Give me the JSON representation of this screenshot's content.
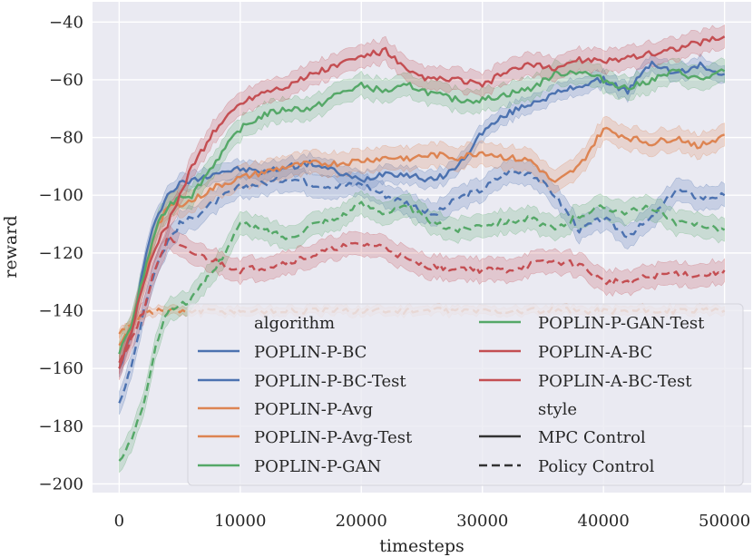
{
  "chart_data": {
    "type": "line",
    "title": "",
    "xlabel": "timesteps",
    "ylabel": "reward",
    "xlim": [
      -2200,
      52200
    ],
    "ylim": [
      -203,
      -33
    ],
    "xticks": [
      0,
      10000,
      20000,
      30000,
      40000,
      50000
    ],
    "yticks": [
      -200,
      -180,
      -160,
      -140,
      -120,
      -100,
      -80,
      -60,
      -40
    ],
    "xtick_labels": [
      "0",
      "10000",
      "20000",
      "30000",
      "40000",
      "50000"
    ],
    "ytick_labels": [
      "−200",
      "−180",
      "−160",
      "−140",
      "−120",
      "−100",
      "−80",
      "−60",
      "−40"
    ],
    "grid": true,
    "background": "#eaeaf2",
    "legend": {
      "placement": "lower-right",
      "algorithm_title": "algorithm",
      "style_title": "style",
      "styles": [
        {
          "name": "MPC Control",
          "dash": "solid"
        },
        {
          "name": "Policy Control",
          "dash": "dashed"
        }
      ]
    },
    "series": [
      {
        "name": "POPLIN-P-BC",
        "color": "#4c72b0",
        "dash": "solid",
        "x": [
          0,
          1000,
          2000,
          3000,
          4000,
          5000,
          6000,
          8000,
          10000,
          12000,
          14000,
          16000,
          18000,
          20000,
          22000,
          24000,
          26000,
          28000,
          30000,
          32000,
          34000,
          36000,
          38000,
          40000,
          42000,
          44000,
          46000,
          48000,
          50000
        ],
        "y": [
          -160,
          -148,
          -125,
          -108,
          -100,
          -96,
          -95,
          -92,
          -91,
          -92,
          -90,
          -89,
          -92,
          -95,
          -92,
          -93,
          -95,
          -90,
          -78,
          -72,
          -68,
          -65,
          -62,
          -60,
          -64,
          -54,
          -58,
          -55,
          -58
        ],
        "band": 3
      },
      {
        "name": "POPLIN-P-BC-Test",
        "color": "#4c72b0",
        "dash": "dashed",
        "x": [
          0,
          1000,
          2000,
          3000,
          4000,
          5000,
          6000,
          8000,
          10000,
          12000,
          14000,
          16000,
          18000,
          20000,
          22000,
          24000,
          26000,
          28000,
          30000,
          32000,
          34000,
          36000,
          38000,
          40000,
          42000,
          44000,
          46000,
          48000,
          50000
        ],
        "y": [
          -172,
          -160,
          -140,
          -125,
          -116,
          -110,
          -108,
          -102,
          -97,
          -96,
          -94,
          -96,
          -97,
          -96,
          -100,
          -103,
          -107,
          -101,
          -98,
          -92,
          -92,
          -100,
          -112,
          -108,
          -114,
          -108,
          -98,
          -101,
          -100
        ],
        "band": 4
      },
      {
        "name": "POPLIN-P-Avg",
        "color": "#dd8452",
        "dash": "solid",
        "x": [
          0,
          1000,
          2000,
          3000,
          4000,
          5000,
          6000,
          8000,
          10000,
          12000,
          14000,
          16000,
          18000,
          20000,
          22000,
          24000,
          26000,
          28000,
          30000,
          32000,
          34000,
          36000,
          38000,
          40000,
          42000,
          44000,
          46000,
          48000,
          50000
        ],
        "y": [
          -152,
          -146,
          -130,
          -112,
          -104,
          -103,
          -102,
          -97,
          -94,
          -92,
          -90,
          -89,
          -89,
          -88,
          -87,
          -87,
          -86,
          -87,
          -85,
          -87,
          -88,
          -96,
          -90,
          -77,
          -80,
          -82,
          -80,
          -83,
          -79
        ],
        "band": 4
      },
      {
        "name": "POPLIN-P-Avg-Test",
        "color": "#dd8452",
        "dash": "dashed",
        "x": [
          0,
          1000,
          2000,
          3000,
          4000,
          5000,
          6000,
          8000,
          10000,
          12000,
          14000,
          16000,
          18000,
          20000,
          22000,
          24000,
          26000,
          28000,
          30000,
          32000,
          34000,
          36000,
          38000,
          40000,
          42000,
          44000,
          46000,
          48000,
          50000
        ],
        "y": [
          -148,
          -144,
          -141,
          -140,
          -140,
          -140,
          -140,
          -140,
          -140,
          -140,
          -140,
          -140,
          -140,
          -140,
          -140,
          -140,
          -140,
          -140,
          -140,
          -140,
          -140,
          -140,
          -140,
          -140,
          -140,
          -140,
          -140,
          -140,
          -140
        ],
        "band": 1.5
      },
      {
        "name": "POPLIN-P-GAN",
        "color": "#55a868",
        "dash": "solid",
        "x": [
          0,
          1000,
          2000,
          3000,
          4000,
          5000,
          6000,
          8000,
          10000,
          12000,
          14000,
          16000,
          18000,
          20000,
          22000,
          24000,
          26000,
          28000,
          30000,
          32000,
          34000,
          36000,
          38000,
          40000,
          42000,
          44000,
          46000,
          48000,
          50000
        ],
        "y": [
          -155,
          -145,
          -128,
          -112,
          -104,
          -100,
          -100,
          -88,
          -77,
          -72,
          -70,
          -70,
          -65,
          -62,
          -64,
          -62,
          -65,
          -67,
          -67,
          -65,
          -63,
          -58,
          -57,
          -60,
          -63,
          -60,
          -57,
          -60,
          -57
        ],
        "band": 4
      },
      {
        "name": "POPLIN-P-GAN-Test",
        "color": "#55a868",
        "dash": "dashed",
        "x": [
          0,
          1000,
          2000,
          3000,
          4000,
          5000,
          6000,
          8000,
          10000,
          12000,
          14000,
          16000,
          18000,
          20000,
          22000,
          24000,
          26000,
          28000,
          30000,
          32000,
          34000,
          36000,
          38000,
          40000,
          42000,
          44000,
          46000,
          48000,
          50000
        ],
        "y": [
          -192,
          -185,
          -172,
          -152,
          -140,
          -138,
          -136,
          -125,
          -110,
          -112,
          -115,
          -110,
          -108,
          -103,
          -106,
          -104,
          -110,
          -112,
          -110,
          -109,
          -108,
          -112,
          -107,
          -104,
          -106,
          -104,
          -110,
          -110,
          -112
        ],
        "band": 4
      },
      {
        "name": "POPLIN-A-BC",
        "color": "#c44e52",
        "dash": "solid",
        "x": [
          0,
          1000,
          2000,
          3000,
          4000,
          5000,
          6000,
          8000,
          10000,
          12000,
          14000,
          16000,
          18000,
          20000,
          22000,
          24000,
          26000,
          28000,
          30000,
          32000,
          34000,
          36000,
          38000,
          40000,
          42000,
          44000,
          46000,
          48000,
          50000
        ],
        "y": [
          -160,
          -148,
          -130,
          -118,
          -110,
          -100,
          -90,
          -77,
          -68,
          -64,
          -62,
          -58,
          -55,
          -52,
          -50,
          -58,
          -60,
          -60,
          -62,
          -57,
          -55,
          -56,
          -53,
          -54,
          -52,
          -51,
          -49,
          -47,
          -45
        ],
        "band": 4
      },
      {
        "name": "POPLIN-A-BC-Test",
        "color": "#c44e52",
        "dash": "dashed",
        "x": [
          0,
          1000,
          2000,
          3000,
          4000,
          5000,
          6000,
          8000,
          10000,
          12000,
          14000,
          16000,
          18000,
          20000,
          22000,
          24000,
          26000,
          28000,
          30000,
          32000,
          34000,
          36000,
          38000,
          40000,
          42000,
          44000,
          46000,
          48000,
          50000
        ],
        "y": [
          -158,
          -150,
          -140,
          -125,
          -115,
          -118,
          -120,
          -123,
          -126,
          -125,
          -123,
          -121,
          -118,
          -117,
          -118,
          -123,
          -125,
          -125,
          -126,
          -126,
          -124,
          -123,
          -124,
          -130,
          -130,
          -128,
          -127,
          -128,
          -126
        ],
        "band": 4
      }
    ]
  }
}
